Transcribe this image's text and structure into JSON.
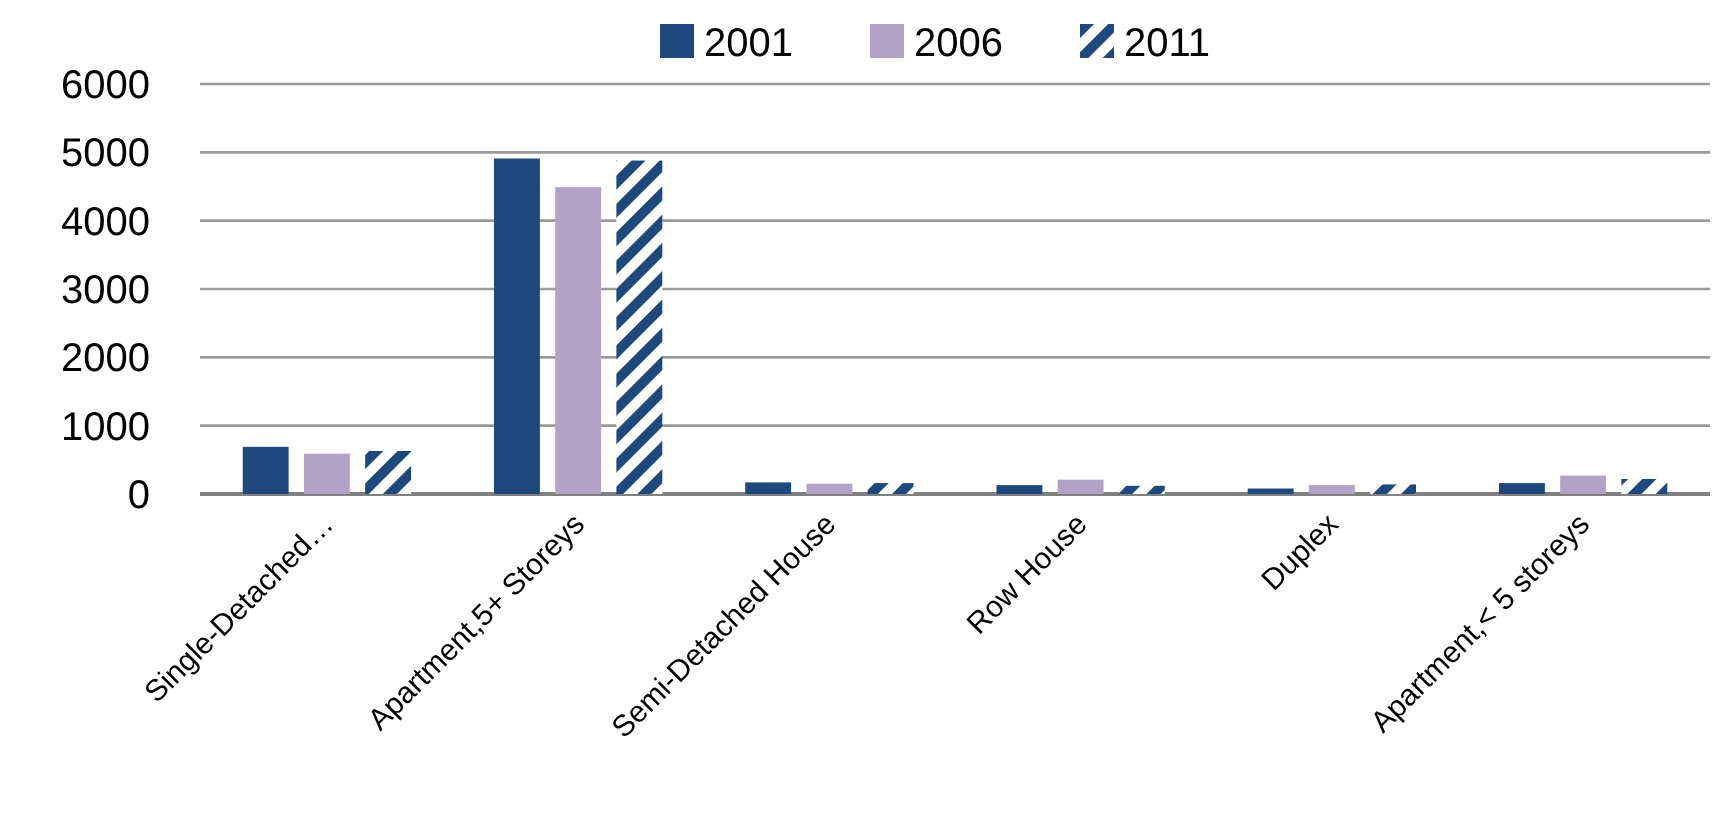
{
  "chart_data": {
    "type": "bar",
    "categories": [
      "Single-Detached…",
      "Apartment,5+ Storeys",
      "Semi-Detached House",
      "Row House",
      "Duplex",
      "Apartment,< 5 storeys"
    ],
    "series": [
      {
        "name": "2001",
        "color": "#1f497d",
        "values": [
          690,
          4910,
          170,
          130,
          80,
          160
        ]
      },
      {
        "name": "2006",
        "color": "#b3a2c7",
        "values": [
          590,
          4490,
          150,
          210,
          130,
          270
        ]
      },
      {
        "name": "2011",
        "color": "#1f497d",
        "values": [
          630,
          4880,
          160,
          120,
          140,
          220
        ]
      }
    ],
    "ylim": [
      0,
      6000
    ],
    "yticks": [
      0,
      1000,
      2000,
      3000,
      4000,
      5000,
      6000
    ],
    "grid": "y",
    "legend": "top"
  }
}
